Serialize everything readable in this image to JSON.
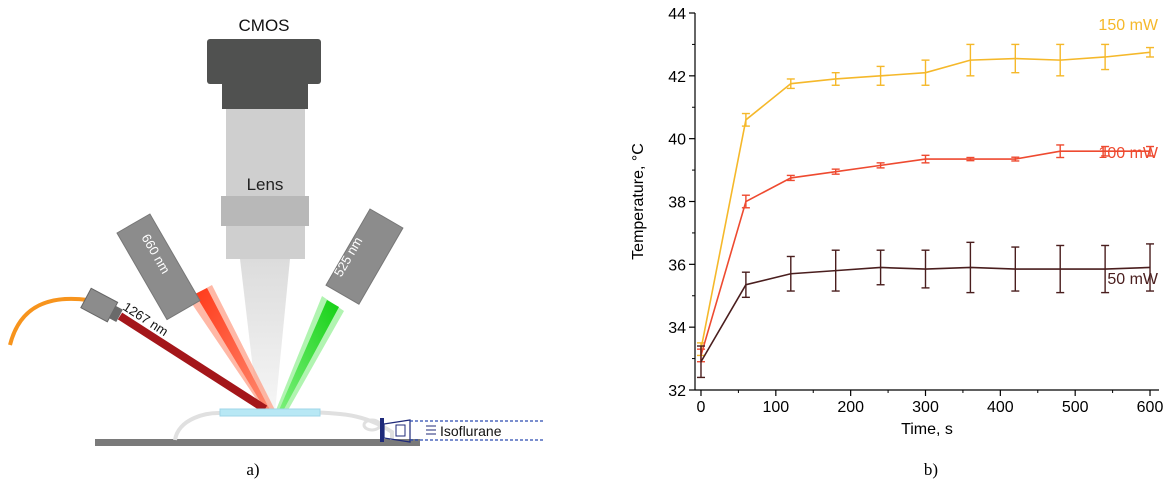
{
  "panel_a": {
    "panel_label": "a)",
    "camera_label": "CMOS",
    "lens_label": "Lens",
    "red_led_label": "660 nm",
    "green_led_label": "525 nm",
    "laser_label": "1267 nm",
    "anesthesia_label": "Isoflurane",
    "colors": {
      "red_beam": "#ff5a36",
      "green_beam": "#2ee82e",
      "laser_fiber": "#a4161a",
      "cable": "#f7941d",
      "source_housing": "#8c8c8c"
    }
  },
  "panel_b": {
    "panel_label": "b)"
  },
  "chart_data": {
    "type": "line",
    "xlabel": "Time, s",
    "ylabel": "Temperature, °C",
    "xlim": [
      -8,
      612
    ],
    "ylim": [
      32,
      44
    ],
    "xticks": [
      0,
      100,
      200,
      300,
      400,
      500,
      600
    ],
    "yticks": [
      32,
      34,
      36,
      38,
      40,
      42,
      44
    ],
    "grid": false,
    "series": [
      {
        "name": "150 mW",
        "color": "#f5b82a",
        "label_position": "top-right",
        "x": [
          0,
          60,
          120,
          180,
          240,
          300,
          360,
          420,
          480,
          540,
          600
        ],
        "values": [
          33.3,
          40.6,
          41.75,
          41.9,
          42.0,
          42.1,
          42.5,
          42.55,
          42.5,
          42.6,
          42.75
        ],
        "errors": [
          0.2,
          0.2,
          0.15,
          0.2,
          0.3,
          0.4,
          0.5,
          0.45,
          0.5,
          0.4,
          0.15
        ]
      },
      {
        "name": "100 mW",
        "color": "#ee4a30",
        "label_position": "right",
        "x": [
          0,
          60,
          120,
          180,
          240,
          300,
          360,
          420,
          480,
          540,
          600
        ],
        "values": [
          33.1,
          38.0,
          38.75,
          38.95,
          39.15,
          39.35,
          39.35,
          39.35,
          39.6,
          39.6,
          39.6
        ],
        "errors": [
          0.2,
          0.2,
          0.08,
          0.08,
          0.08,
          0.12,
          0.05,
          0.06,
          0.2,
          0.15,
          0.15
        ]
      },
      {
        "name": "50 mW",
        "color": "#4a1e1e",
        "label_position": "right",
        "x": [
          0,
          60,
          120,
          180,
          240,
          300,
          360,
          420,
          480,
          540,
          600
        ],
        "values": [
          32.9,
          35.35,
          35.7,
          35.8,
          35.9,
          35.85,
          35.9,
          35.85,
          35.85,
          35.85,
          35.9
        ],
        "errors": [
          0.5,
          0.4,
          0.55,
          0.65,
          0.55,
          0.6,
          0.8,
          0.7,
          0.75,
          0.75,
          0.75
        ]
      }
    ]
  }
}
